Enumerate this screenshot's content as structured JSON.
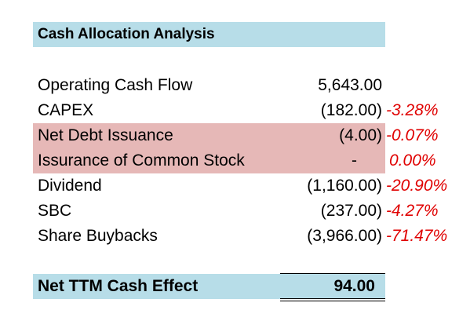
{
  "title": "Cash Allocation Analysis",
  "colors": {
    "header_fill": "#b7dde8",
    "highlight_fill": "#e6b8b7",
    "negative_pct": "#e00000",
    "text": "#000000"
  },
  "rows": [
    {
      "label": "Operating Cash Flow",
      "value": "5,643.00",
      "pct": ""
    },
    {
      "label": "CAPEX",
      "value": "(182.00)",
      "pct": "-3.28%"
    },
    {
      "label": "Net Debt Issuance",
      "value": "(4.00)",
      "pct": "-0.07%"
    },
    {
      "label": "Issurance of Common Stock",
      "value": "-",
      "pct": "0.00%"
    },
    {
      "label": "Dividend",
      "value": "(1,160.00)",
      "pct": "-20.90%"
    },
    {
      "label": "SBC",
      "value": "(237.00)",
      "pct": "-4.27%"
    },
    {
      "label": "Share Buybacks",
      "value": "(3,966.00)",
      "pct": "-71.47%"
    }
  ],
  "total": {
    "label": "Net TTM Cash Effect",
    "value": "94.00"
  }
}
